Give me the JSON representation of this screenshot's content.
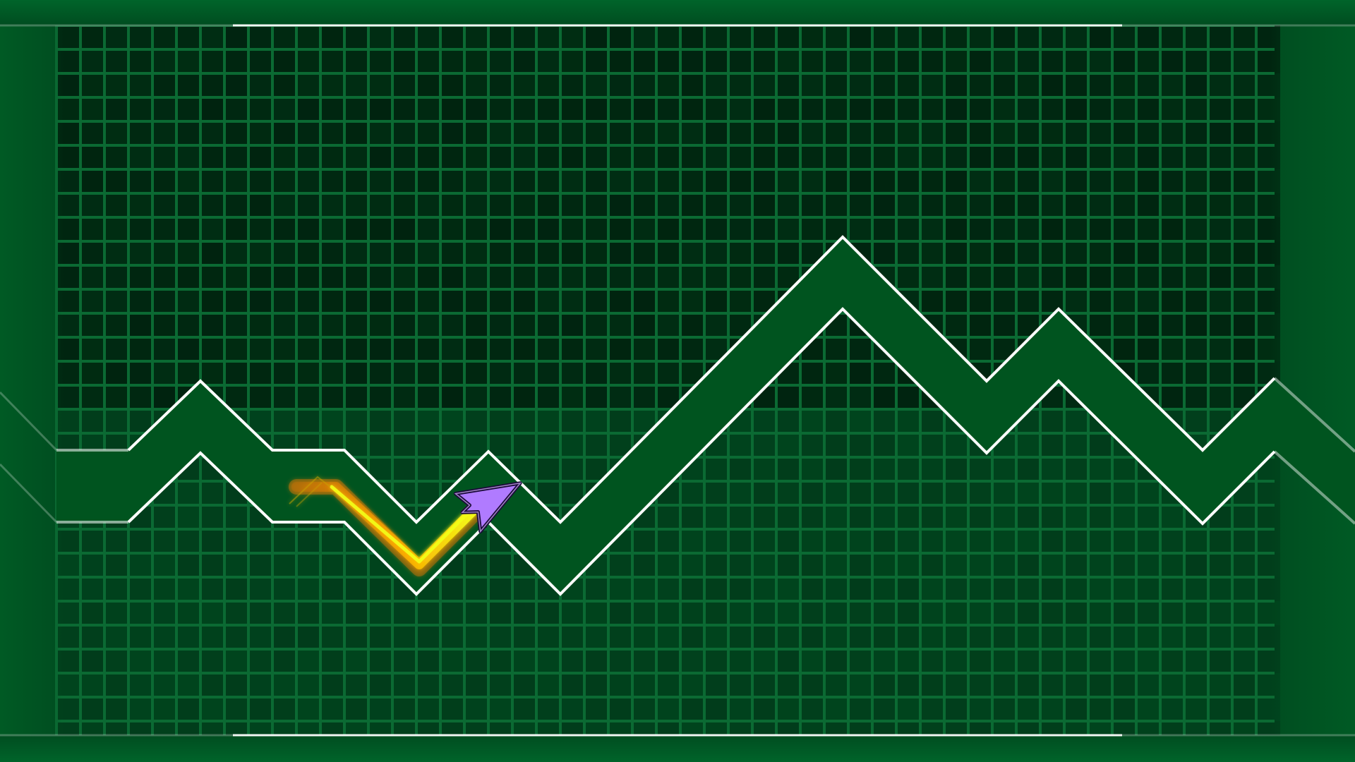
{
  "game": {
    "mode": "wave",
    "colors": {
      "background": "#004d20",
      "grid_line": "#0b6a33",
      "grid_cell_dark": "#00230f",
      "grid_cell_mid": "#013519",
      "border": "#004a1f",
      "corridor_fill": "#00541f",
      "corridor_edge": "#ffffff",
      "player_fill": "#b07bff",
      "player_outline": "#1b0a3a",
      "trail_inner": "#f2ff1a",
      "trail_outer": "#ff7a00"
    },
    "icons": {
      "player": "wave-arrow-icon",
      "trail": "wave-trail"
    }
  }
}
